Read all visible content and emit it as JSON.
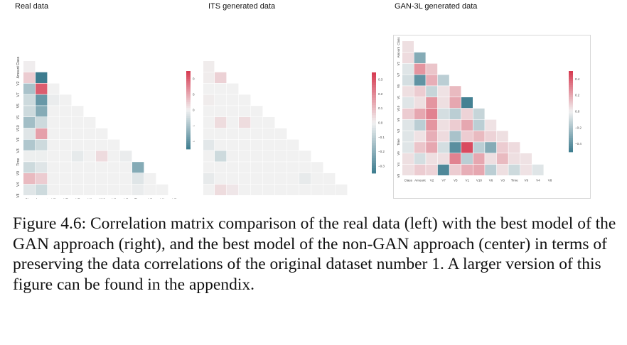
{
  "caption": "Figure 4.6: Correlation matrix comparison of the real data (left) with the best model of the GAN approach (right), and the best model of the non-GAN approach (center) in terms of preserving the data correlations of the original dataset number 1. A larger version of this figure can be found in the appendix.",
  "colors": {
    "negative": "#3d7c8f",
    "neutral": "#f1f1f1",
    "positive": "#d6384f"
  },
  "chart_data": [
    {
      "type": "heatmap",
      "title": "Real data",
      "columns": [
        "Class",
        "Amount",
        "V2",
        "V7",
        "V5",
        "V1",
        "V10",
        "V6",
        "V3",
        "Time",
        "V9",
        "V4",
        "V8"
      ],
      "rows": [
        "Class",
        "Amount",
        "V2",
        "V7",
        "V5",
        "V1",
        "V10",
        "V6",
        "V3",
        "Time",
        "V9",
        "V4",
        "V8"
      ],
      "row_tick_labels": [
        "Class",
        "Amount",
        "V2",
        "V7",
        "V5",
        "V1",
        "V10",
        "V6",
        "V3",
        "Time",
        "V9",
        "V4",
        "V8"
      ],
      "colorbar_ticks": [
        0.4,
        0.2,
        0.0,
        -0.2,
        -0.4
      ],
      "vrange": [
        -0.5,
        0.5
      ],
      "lower_triangle": [
        [],
        [
          0.01
        ],
        [
          0.1,
          -0.53
        ],
        [
          -0.2,
          0.4,
          0.0
        ],
        [
          -0.1,
          -0.38,
          -0.02,
          0.0
        ],
        [
          -0.1,
          -0.3,
          0.0,
          0.0,
          0.0
        ],
        [
          -0.22,
          -0.1,
          0.0,
          0.0,
          0.0,
          0.0
        ],
        [
          -0.05,
          0.22,
          0.0,
          0.0,
          0.0,
          0.0,
          0.0
        ],
        [
          -0.18,
          -0.1,
          0.0,
          0.0,
          0.0,
          0.0,
          0.0,
          0.0
        ],
        [
          -0.01,
          -0.01,
          0.0,
          0.0,
          -0.03,
          0.0,
          0.06,
          0.0,
          -0.02
        ],
        [
          -0.1,
          -0.05,
          0.0,
          0.0,
          0.0,
          0.0,
          0.0,
          0.0,
          0.0,
          -0.3
        ],
        [
          0.15,
          0.1,
          0.0,
          0.0,
          0.0,
          0.0,
          0.0,
          0.0,
          0.0,
          -0.05,
          0.0
        ],
        [
          -0.05,
          -0.1,
          0.0,
          0.0,
          0.0,
          0.0,
          0.0,
          0.0,
          0.0,
          -0.02,
          0.0,
          0.0
        ]
      ]
    },
    {
      "type": "heatmap",
      "title": "ITS generated data",
      "columns": [
        "Class",
        "Amount",
        "V2",
        "V7",
        "V5",
        "V1",
        "V10",
        "V6",
        "V3",
        "Time",
        "V9",
        "V4",
        "V8"
      ],
      "rows": [
        "Class",
        "Amount",
        "V2",
        "V7",
        "V5",
        "V1",
        "V10",
        "V6",
        "V3",
        "Time",
        "V9",
        "V4",
        "V8"
      ],
      "row_tick_labels": [
        "Class",
        "Amount",
        "V2",
        "V7",
        "V5",
        "V1",
        "V10",
        "V6",
        "V3",
        "Time",
        "V9",
        "V4",
        "V8"
      ],
      "colorbar_ticks": [
        0.3,
        0.2,
        0.1,
        0.0,
        -0.1,
        -0.2,
        -0.3
      ],
      "vrange": [
        -0.35,
        0.35
      ],
      "lower_triangle": [
        [],
        [
          0.01
        ],
        [
          0.01,
          0.06
        ],
        [
          0.0,
          0.0,
          0.0
        ],
        [
          0.01,
          0.0,
          0.0,
          0.0
        ],
        [
          0.0,
          0.0,
          0.0,
          0.0,
          0.0
        ],
        [
          0.0,
          0.04,
          0.0,
          0.04,
          0.0,
          0.0
        ],
        [
          0.0,
          0.0,
          0.0,
          0.0,
          0.0,
          0.0,
          0.0
        ],
        [
          -0.03,
          0.0,
          0.0,
          0.0,
          0.0,
          0.0,
          0.0,
          0.0
        ],
        [
          0.0,
          -0.07,
          0.0,
          0.0,
          0.0,
          0.0,
          0.0,
          0.0,
          0.0
        ],
        [
          0.0,
          0.0,
          0.0,
          0.0,
          0.0,
          0.0,
          0.0,
          0.0,
          0.0,
          0.0
        ],
        [
          -0.02,
          0.0,
          0.0,
          0.0,
          0.0,
          0.0,
          0.0,
          0.0,
          -0.02,
          0.0,
          0.0
        ],
        [
          0.0,
          0.04,
          0.02,
          0.0,
          0.0,
          0.0,
          0.0,
          0.0,
          0.0,
          0.0,
          0.0,
          0.0
        ]
      ]
    },
    {
      "type": "heatmap",
      "title": "GAN-3L generated data",
      "columns": [
        "Class",
        "Amount",
        "V2",
        "V7",
        "V5",
        "V1",
        "V10",
        "V6",
        "V3",
        "Time",
        "V9",
        "V4",
        "V8"
      ],
      "rows": [
        "Class",
        "Amount",
        "V2",
        "V7",
        "V5",
        "V1",
        "V10",
        "V6",
        "V3",
        "Time",
        "V9",
        "V4",
        "V8"
      ],
      "row_tick_labels": [
        "Class",
        "Amount",
        "V2",
        "V7",
        "V5",
        "V1",
        "V10",
        "V6",
        "V3",
        "Time",
        "V9",
        "V4",
        "V8"
      ],
      "colorbar_ticks": [
        0.4,
        0.2,
        0.0,
        -0.2,
        -0.4
      ],
      "vrange": [
        -0.5,
        0.5
      ],
      "lower_triangle": [
        [],
        [
          0.05
        ],
        [
          0.06,
          -0.3
        ],
        [
          -0.05,
          0.25,
          0.12
        ],
        [
          -0.08,
          -0.4,
          0.18,
          -0.15
        ],
        [
          0.05,
          0.1,
          -0.12,
          0.04,
          0.15
        ],
        [
          -0.05,
          0.05,
          0.25,
          0.05,
          0.2,
          -0.48
        ],
        [
          0.1,
          0.2,
          0.3,
          -0.08,
          -0.15,
          0.08,
          -0.12
        ],
        [
          -0.05,
          -0.15,
          0.25,
          0.05,
          0.1,
          0.2,
          -0.15,
          0.04
        ],
        [
          -0.05,
          0.04,
          0.18,
          0.06,
          -0.2,
          0.1,
          0.15,
          0.08,
          0.05
        ],
        [
          -0.05,
          0.12,
          0.2,
          -0.08,
          -0.42,
          0.45,
          -0.15,
          -0.3,
          0.1,
          0.06
        ],
        [
          0.05,
          -0.08,
          0.05,
          0.05,
          0.3,
          -0.15,
          0.2,
          0.05,
          0.15,
          0.05,
          0.04
        ],
        [
          0.05,
          0.1,
          0.08,
          -0.45,
          0.1,
          0.18,
          0.2,
          -0.15,
          0.05,
          -0.1,
          0.04,
          -0.05
        ]
      ]
    }
  ]
}
